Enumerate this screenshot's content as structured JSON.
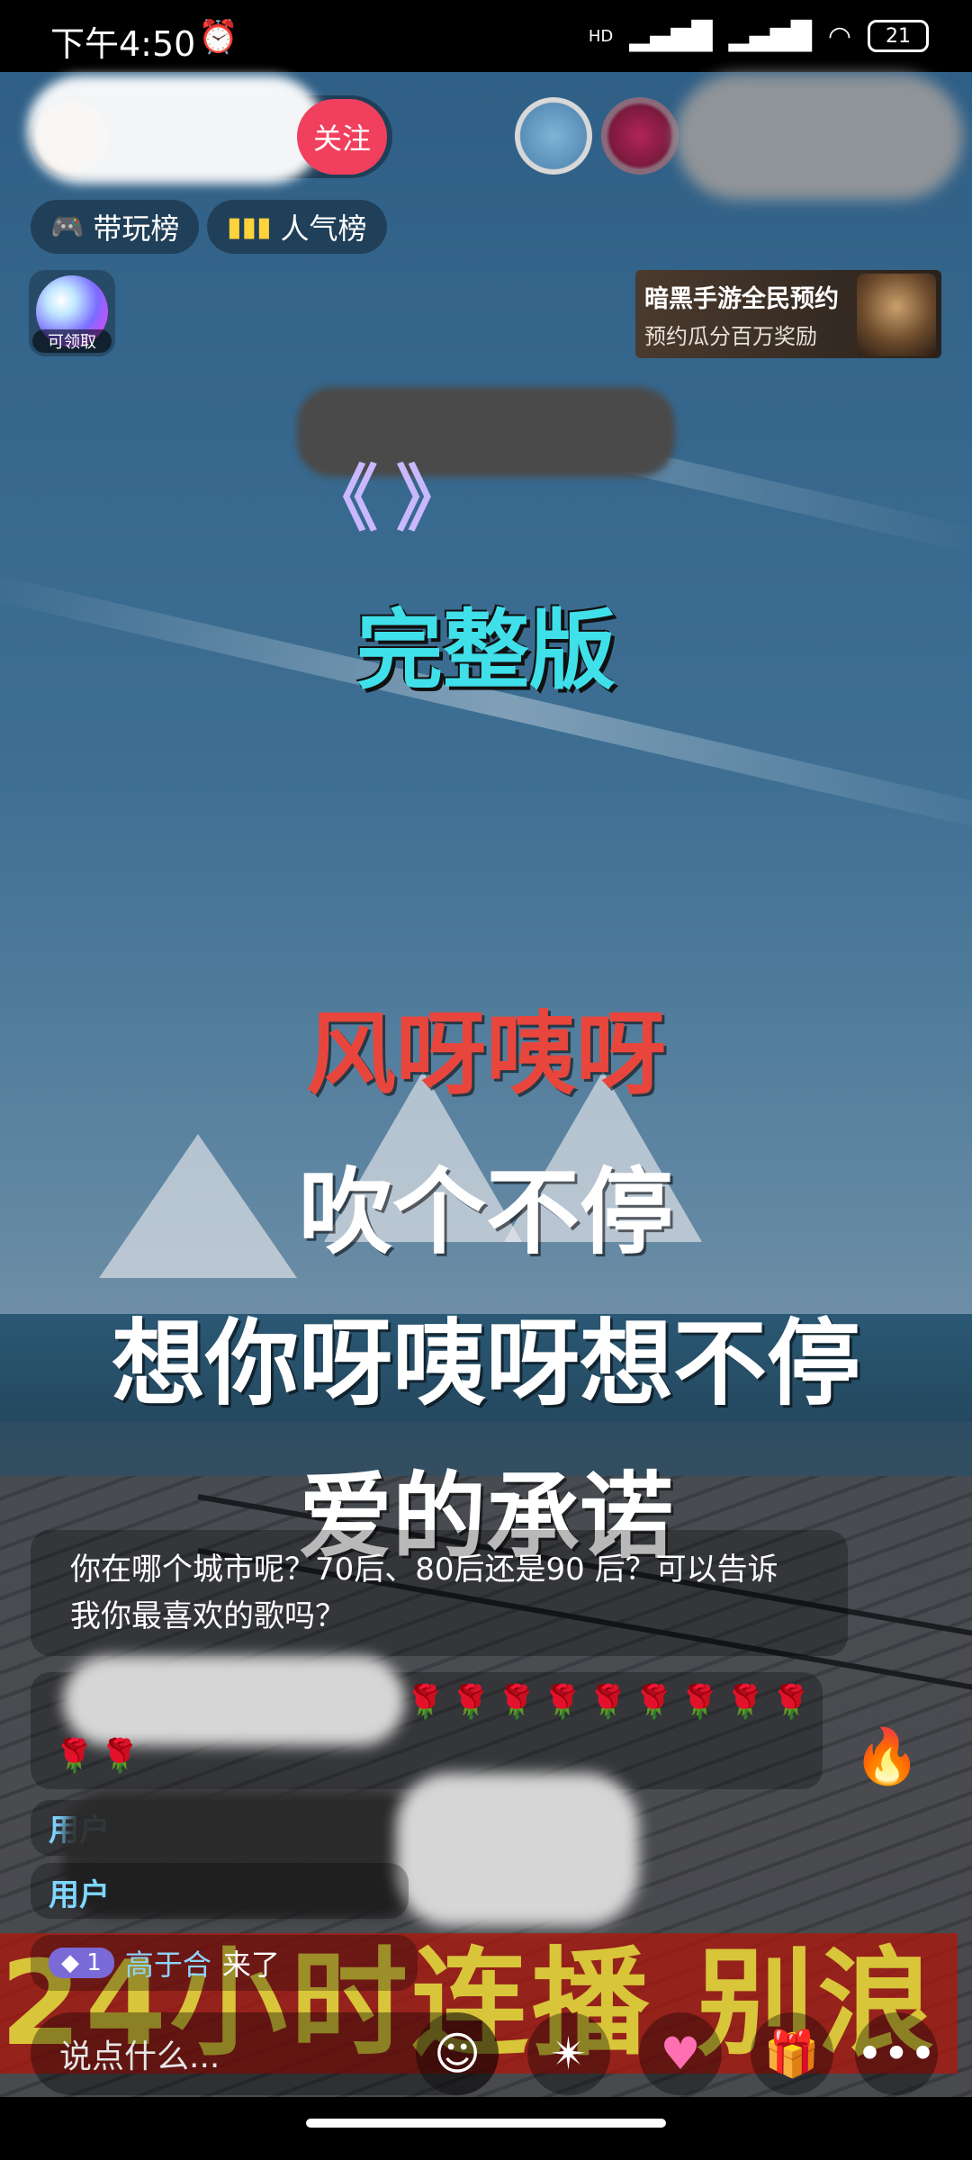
{
  "status_bar": {
    "time": "下午4:50",
    "alarm_icon": "alarm-icon",
    "network": "HD",
    "battery": "21"
  },
  "top": {
    "follow_label": "关注"
  },
  "ranks": [
    {
      "label": "带玩榜",
      "icon": "gamepad-icon"
    },
    {
      "label": "人气榜",
      "icon": "bar-chart-icon"
    }
  ],
  "reward": {
    "label": "可领取"
  },
  "ad": {
    "title": "暗黑手游全民预约",
    "subtitle": "预约瓜分百万奖励"
  },
  "video": {
    "title_fragment": "《 》",
    "version": "完整版",
    "lyrics": [
      "风呀咦呀",
      "吹个不停",
      "想你呀咦呀想不停",
      "爱的承诺"
    ]
  },
  "chat": {
    "notice": "你在哪个城市呢？70后、80后还是90 后？可以告诉我你最喜欢的歌吗？",
    "roses_row1": "🌹🌹🌹🌹🌹🌹🌹🌹🌹",
    "roses_row2": "🌹🌹",
    "user_prefix": "用户",
    "enter": {
      "level": "1",
      "user": "高于合",
      "action": "来了"
    }
  },
  "marquee_text": "24小时连播 别浪",
  "bottom": {
    "comment_placeholder": "说点什么...",
    "tools": [
      "emoji-icon",
      "pinwheel-icon",
      "heart-icon",
      "gift-icon",
      "more-icon"
    ]
  },
  "colors": {
    "follow": "#f0405e",
    "accent_cyan": "#3fe0ea",
    "lyric_red": "#e8463c",
    "marquee_bg": "#b4140a",
    "marquee_text": "#d8c53a"
  }
}
